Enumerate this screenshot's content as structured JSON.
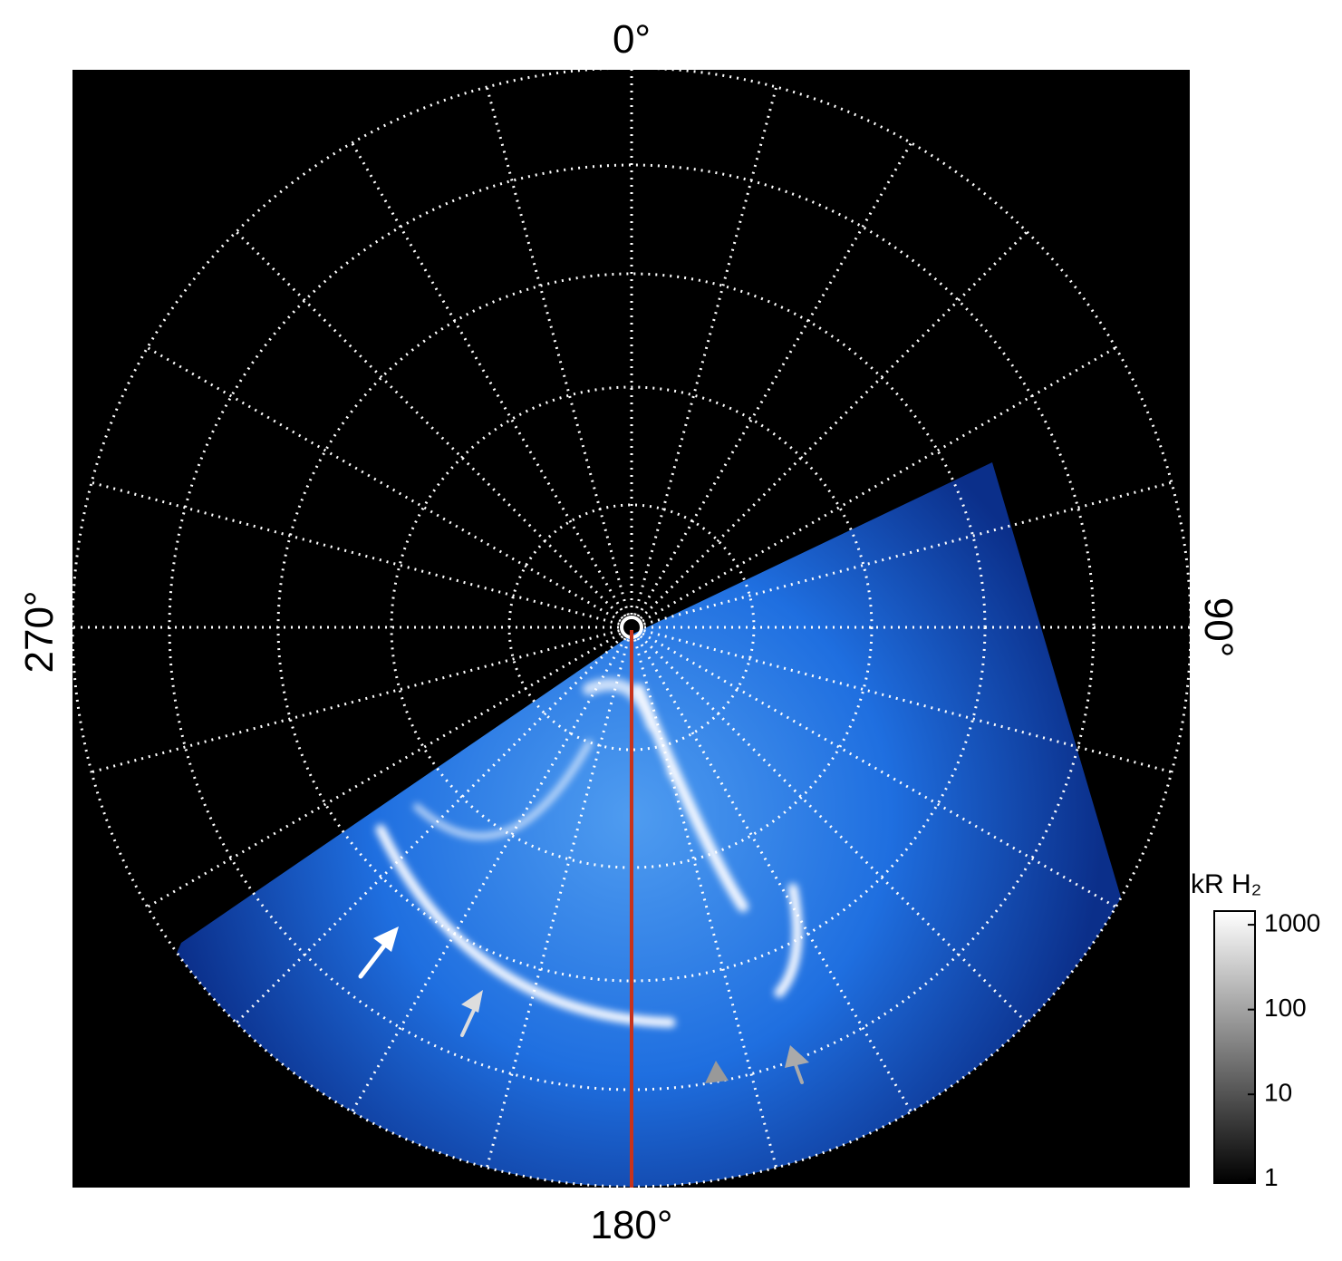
{
  "chart_data": {
    "type": "polar-image",
    "direction_labels": {
      "top": "0°",
      "right": "90°",
      "bottom": "180°",
      "left": "270°"
    },
    "colorbar": {
      "title": "kR H₂",
      "log": true,
      "clim": [
        0.9,
        1450
      ],
      "ticks": [
        1,
        10,
        100,
        1000
      ]
    }
  }
}
